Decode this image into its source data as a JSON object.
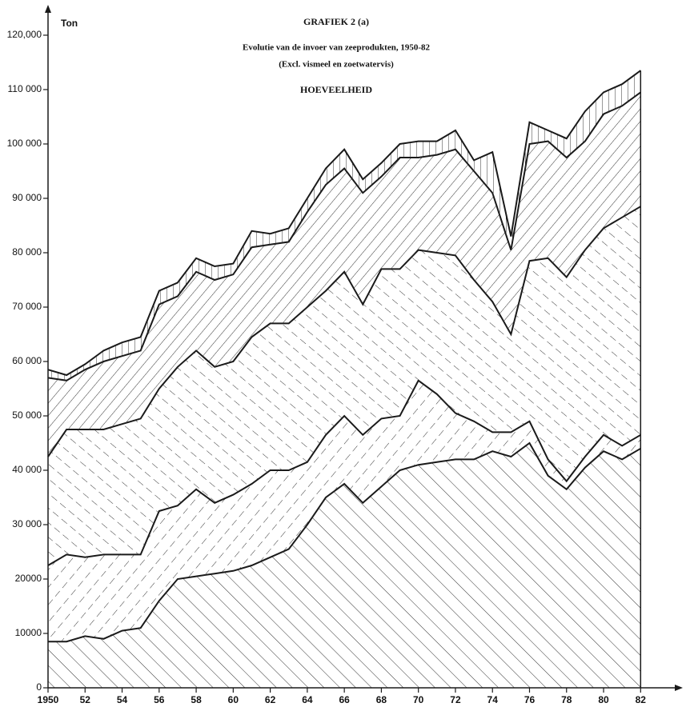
{
  "chart_data": {
    "type": "stacked_area",
    "title": "GRAFIEK 2 (a)",
    "subtitle": "Evolutie van de invoer van zeeprodukten, 1950-82",
    "note": "(Excl. vismeel en zoetwatervis)",
    "heading": "HOEVEELHEID",
    "y_label": "Ton",
    "line_color": "#1a1a1a",
    "x": [
      1950,
      1951,
      1952,
      1953,
      1954,
      1955,
      1956,
      1957,
      1958,
      1959,
      1960,
      1961,
      1962,
      1963,
      1964,
      1965,
      1966,
      1967,
      1968,
      1969,
      1970,
      1971,
      1972,
      1973,
      1974,
      1975,
      1976,
      1977,
      1978,
      1979,
      1980,
      1981,
      1982
    ],
    "series": [
      {
        "values": [
          8500,
          8500,
          9500,
          9000,
          10500,
          11000,
          16000,
          20000,
          20500,
          21000,
          21500,
          22500,
          24000,
          25500,
          30000,
          35000,
          37500,
          34000,
          37000,
          40000,
          41000,
          41500,
          42000,
          42000,
          43500,
          42500,
          45000,
          39000,
          36500,
          40500,
          43500,
          42000,
          44000
        ]
      },
      {
        "values": [
          14000,
          16000,
          14500,
          15500,
          14000,
          13500,
          16500,
          13500,
          16000,
          13000,
          14000,
          15000,
          16000,
          14500,
          11500,
          11500,
          12500,
          12500,
          12500,
          10000,
          15500,
          12500,
          8500,
          7000,
          3500,
          4500,
          4000,
          3000,
          1500,
          2000,
          3000,
          2500,
          2500
        ]
      },
      {
        "values": [
          20000,
          23000,
          23500,
          23000,
          24000,
          25000,
          22500,
          25500,
          25500,
          25000,
          24500,
          27000,
          27000,
          27000,
          28500,
          26500,
          26500,
          24000,
          27500,
          27000,
          24000,
          26000,
          29000,
          26000,
          24000,
          18000,
          29500,
          37000,
          37500,
          38000,
          38000,
          42000,
          42000
        ]
      },
      {
        "values": [
          14500,
          9000,
          11000,
          12500,
          12500,
          12500,
          15500,
          13000,
          14500,
          16000,
          16000,
          16500,
          14500,
          15000,
          17500,
          19500,
          19000,
          20500,
          17000,
          20500,
          17000,
          18000,
          19500,
          20000,
          20000,
          15500,
          21500,
          21500,
          22000,
          20000,
          21000,
          20500,
          21000
        ]
      },
      {
        "values": [
          1500,
          1000,
          1000,
          2000,
          2500,
          2500,
          2500,
          2500,
          2500,
          2500,
          2000,
          3000,
          2000,
          2500,
          2500,
          3000,
          3500,
          2500,
          2500,
          2500,
          3000,
          2500,
          3500,
          2000,
          7500,
          2500,
          4000,
          2000,
          3500,
          5500,
          4000,
          4000,
          4000
        ]
      }
    ],
    "xlim": [
      1950,
      1983.5
    ],
    "xticks": [
      1950,
      {
        "value": 1952,
        "label": "52"
      },
      {
        "value": 1954,
        "label": "54"
      },
      {
        "value": 1956,
        "label": "56"
      },
      {
        "value": 1958,
        "label": "58"
      },
      {
        "value": 1960,
        "label": "60"
      },
      {
        "value": 1962,
        "label": "62"
      },
      {
        "value": 1964,
        "label": "64"
      },
      {
        "value": 1966,
        "label": "66"
      },
      {
        "value": 1968,
        "label": "68"
      },
      {
        "value": 1970,
        "label": "70"
      },
      {
        "value": 1972,
        "label": "72"
      },
      {
        "value": 1974,
        "label": "74"
      },
      {
        "value": 1976,
        "label": "76"
      },
      {
        "value": 1978,
        "label": "78"
      },
      {
        "value": 1980,
        "label": "80"
      },
      {
        "value": 1982,
        "label": "82"
      }
    ],
    "ylim": [
      0,
      125000
    ],
    "yticks": [
      0,
      {
        "value": 10000,
        "label": "10000"
      },
      {
        "value": 20000,
        "label": "20000"
      },
      {
        "value": 30000,
        "label": "30 000"
      },
      {
        "value": 40000,
        "label": "40 000"
      },
      {
        "value": 50000,
        "label": "50 000"
      },
      {
        "value": 60000,
        "label": "60 000"
      },
      {
        "value": 70000,
        "label": "70 000"
      },
      {
        "value": 80000,
        "label": "80 000"
      },
      {
        "value": 90000,
        "label": "90 000"
      },
      {
        "value": 100000,
        "label": "100 000"
      },
      {
        "value": 110000,
        "label": "110 000"
      },
      {
        "value": 120000,
        "label": "120,000"
      }
    ]
  }
}
